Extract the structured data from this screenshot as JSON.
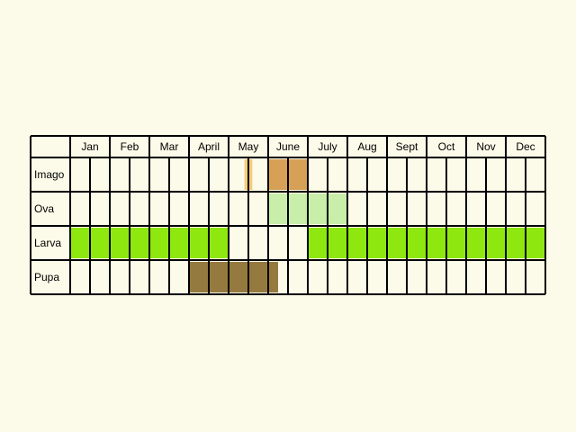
{
  "months": [
    "Jan",
    "Feb",
    "Mar",
    "April",
    "May",
    "June",
    "July",
    "Aug",
    "Sept",
    "Oct",
    "Nov",
    "Dec"
  ],
  "colors": {
    "background": "#fcfbe9",
    "grid_line": "#000000",
    "imago_light": "#f5cd7f",
    "imago": "#d6a157",
    "ova": "#c8eeaa",
    "larva": "#8ee80f",
    "pupa": "#957a3f"
  },
  "stages": [
    {
      "label": "Imago",
      "periods": [
        {
          "from_month": 5.4,
          "to_month": 5.6,
          "color": "#f5cd7f"
        },
        {
          "from_month": 6.0,
          "to_month": 7.0,
          "color": "#d6a157"
        }
      ]
    },
    {
      "label": "Ova",
      "periods": [
        {
          "from_month": 6.0,
          "to_month": 8.0,
          "color": "#c8eeaa"
        }
      ]
    },
    {
      "label": "Larva",
      "periods": [
        {
          "from_month": 1.0,
          "to_month": 5.0,
          "color": "#8ee80f"
        },
        {
          "from_month": 7.0,
          "to_month": 13.0,
          "color": "#8ee80f"
        }
      ]
    },
    {
      "label": "Pupa",
      "periods": [
        {
          "from_month": 4.0,
          "to_month": 6.25,
          "color": "#957a3f"
        }
      ]
    }
  ]
}
